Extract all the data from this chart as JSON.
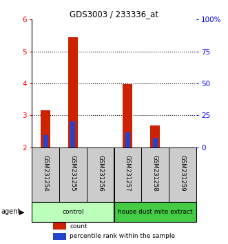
{
  "title": "GDS3003 / 233336_at",
  "samples": [
    "GSM231254",
    "GSM231255",
    "GSM231256",
    "GSM231257",
    "GSM231258",
    "GSM231259"
  ],
  "count_values": [
    3.15,
    5.45,
    2.0,
    3.97,
    2.68,
    2.0
  ],
  "count_base": 2.0,
  "percentile_values": [
    2.38,
    2.82,
    2.0,
    2.46,
    2.3,
    2.0
  ],
  "percentile_base": 2.0,
  "ylim_left": [
    2.0,
    6.0
  ],
  "ylim_right": [
    0,
    100
  ],
  "yticks_left": [
    2,
    3,
    4,
    5,
    6
  ],
  "yticks_right": [
    0,
    25,
    50,
    75,
    100
  ],
  "ytick_labels_right": [
    "0",
    "25",
    "50",
    "75",
    "100%"
  ],
  "bar_color_red": "#cc2200",
  "bar_color_blue": "#2244cc",
  "group_labels": [
    "control",
    "house dust mite extract"
  ],
  "group_ranges": [
    [
      0,
      3
    ],
    [
      3,
      6
    ]
  ],
  "group_colors_light": "#bbffbb",
  "group_colors_dark": "#44cc44",
  "agent_label": "agent",
  "legend_count": "count",
  "legend_percentile": "percentile rank within the sample",
  "bar_width": 0.35,
  "blue_bar_width": 0.18
}
